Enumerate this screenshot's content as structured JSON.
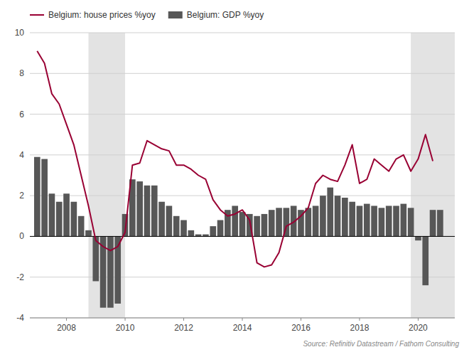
{
  "chart_data": {
    "type": "bar",
    "source": "Source: Refinitiv Datastream / Fathom Consulting",
    "x": [
      2007.0,
      2007.25,
      2007.5,
      2007.75,
      2008.0,
      2008.25,
      2008.5,
      2008.75,
      2009.0,
      2009.25,
      2009.5,
      2009.75,
      2010.0,
      2010.25,
      2010.5,
      2010.75,
      2011.0,
      2011.25,
      2011.5,
      2011.75,
      2012.0,
      2012.25,
      2012.5,
      2012.75,
      2013.0,
      2013.25,
      2013.5,
      2013.75,
      2014.0,
      2014.25,
      2014.5,
      2014.75,
      2015.0,
      2015.25,
      2015.5,
      2015.75,
      2016.0,
      2016.25,
      2016.5,
      2016.75,
      2017.0,
      2017.25,
      2017.5,
      2017.75,
      2018.0,
      2018.25,
      2018.5,
      2018.75,
      2019.0,
      2019.25,
      2019.5,
      2019.75,
      2020.0,
      2020.25,
      2020.5,
      2020.75
    ],
    "series": [
      {
        "name": "Belgium: house prices %yoy",
        "type": "line",
        "color": "#990033",
        "values": [
          9.1,
          8.5,
          7.0,
          6.5,
          5.5,
          4.5,
          3.0,
          1.5,
          -0.2,
          -0.5,
          -0.7,
          -0.5,
          0.2,
          3.5,
          3.6,
          4.7,
          4.5,
          4.3,
          4.2,
          3.5,
          3.5,
          3.3,
          3.0,
          2.8,
          1.8,
          1.3,
          1.0,
          1.1,
          1.3,
          0.8,
          -1.3,
          -1.5,
          -1.4,
          -0.8,
          0.5,
          0.7,
          1.0,
          1.4,
          2.6,
          3.0,
          2.8,
          2.7,
          3.5,
          4.5,
          2.6,
          2.8,
          3.8,
          3.5,
          3.2,
          3.8,
          4.0,
          3.2,
          3.8,
          5.0,
          3.7,
          null
        ]
      },
      {
        "name": "Belgium: GDP %yoy",
        "type": "bar",
        "color": "#575757",
        "values": [
          3.9,
          3.8,
          2.1,
          1.7,
          2.1,
          1.7,
          1.0,
          0.3,
          -2.2,
          -3.5,
          -3.5,
          -3.3,
          1.1,
          2.8,
          2.7,
          2.5,
          2.5,
          1.7,
          1.5,
          1.0,
          0.8,
          0.3,
          0.1,
          0.1,
          0.5,
          0.8,
          1.3,
          1.5,
          1.2,
          1.1,
          1.0,
          1.1,
          1.3,
          1.4,
          1.4,
          1.5,
          1.3,
          1.4,
          1.5,
          2.0,
          2.4,
          2.0,
          1.9,
          1.7,
          1.5,
          1.6,
          1.5,
          1.4,
          1.5,
          1.5,
          1.6,
          1.4,
          -0.2,
          -2.4,
          1.3,
          1.3
        ]
      }
    ],
    "shading_regions": [
      [
        2008.75,
        2010.0
      ],
      [
        2019.75,
        2021.25
      ]
    ],
    "xlim": [
      2006.75,
      2021.25
    ],
    "xticks": [
      2008,
      2010,
      2012,
      2014,
      2016,
      2018,
      2020
    ],
    "ylim": [
      -4,
      10
    ],
    "yticks": [
      -4,
      -2,
      0,
      2,
      4,
      6,
      8,
      10
    ],
    "grid": true,
    "legend": "upper left"
  }
}
